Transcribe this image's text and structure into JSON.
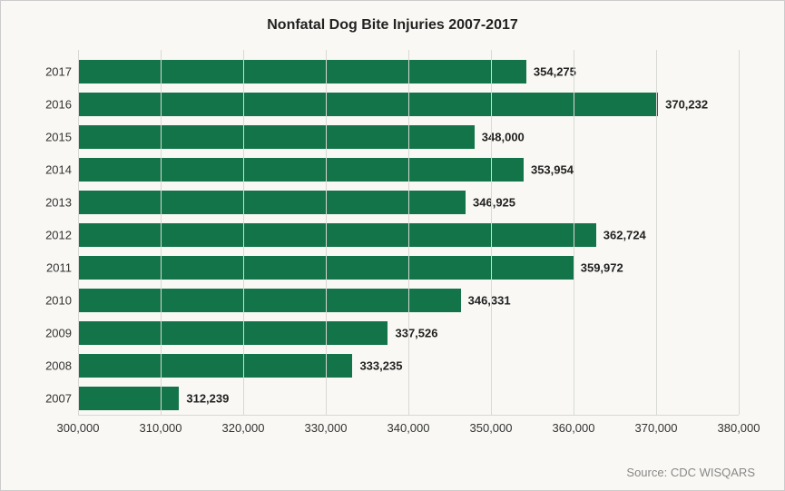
{
  "chart": {
    "type": "bar-horizontal",
    "title": "Nonfatal Dog Bite Injuries 2007-2017",
    "title_fontsize": 16,
    "background_color": "#f9f8f4",
    "border_color": "#cccccc",
    "grid_color": "#d8d8d4",
    "bar_color": "#13744a",
    "text_color": "#222222",
    "label_fontsize": 13,
    "value_fontsize": 13,
    "tick_fontsize": 13,
    "xlim": [
      300000,
      380000
    ],
    "xtick_step": 10000,
    "xticks": [
      "300,000",
      "310,000",
      "320,000",
      "330,000",
      "340,000",
      "350,000",
      "360,000",
      "370,000",
      "380,000"
    ],
    "categories": [
      "2017",
      "2016",
      "2015",
      "2014",
      "2013",
      "2012",
      "2011",
      "2010",
      "2009",
      "2008",
      "2007"
    ],
    "values": [
      354275,
      370232,
      348000,
      353954,
      346925,
      362724,
      359972,
      346331,
      337526,
      333235,
      312239
    ],
    "value_labels": [
      "354,275",
      "370,232",
      "348,000",
      "353,954",
      "346,925",
      "362,724",
      "359,972",
      "346,331",
      "337,526",
      "333,235",
      "312,239"
    ],
    "source": "Source: CDC WISQARS",
    "source_fontsize": 13,
    "source_color": "#888888"
  }
}
